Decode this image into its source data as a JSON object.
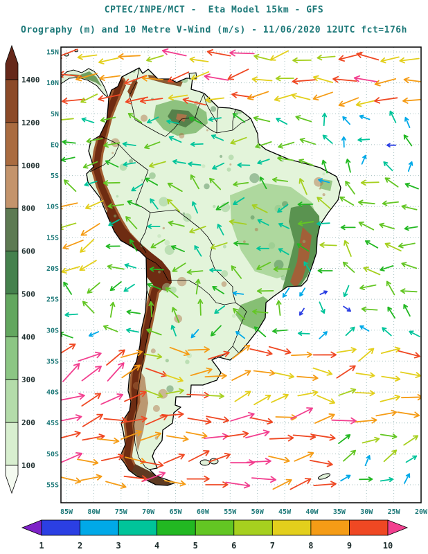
{
  "header": {
    "title_line1": "CPTEC/INPE/MCT -  Eta Model 15km - GFS",
    "title_line2": "Orography (m) and 10 Metre V-Wind (m/s) - 11/06/2020 12UTC fct=176h"
  },
  "chart_data": {
    "type": "heatmap",
    "subtype": "geographic weather chart: filled orography shading with colored 10m wind vector field over South America",
    "title": "CPTEC/INPE/MCT -  Eta Model 15km - GFS",
    "subtitle": "Orography (m) and 10 Metre V-Wind (m/s) - 11/06/2020 12UTC fct=176h",
    "model": "Eta Model 15km",
    "boundary_condition": "GFS",
    "valid_datetime": "11/06/2020 12UTC",
    "forecast": "fct=176h",
    "annotation_color": "#1c7878",
    "grid": "dotted",
    "x_axis": {
      "label": "longitude",
      "ticks": [
        "85W",
        "80W",
        "75W",
        "70W",
        "65W",
        "60W",
        "55W",
        "50W",
        "45W",
        "40W",
        "35W",
        "30W",
        "25W",
        "20W"
      ]
    },
    "y_axis": {
      "label": "latitude",
      "ticks": [
        "15N",
        "10N",
        "5N",
        "EQ",
        "5S",
        "10S",
        "15S",
        "20S",
        "25S",
        "30S",
        "35S",
        "40S",
        "45S",
        "50S",
        "55S"
      ]
    },
    "orography_scale": {
      "units": "m",
      "tick_labels": [
        1400,
        1200,
        1000,
        800,
        600,
        500,
        400,
        300,
        200,
        100
      ],
      "colors_top_to_bottom": [
        "#66281a",
        "#8c4a28",
        "#aa6c40",
        "#c4946c",
        "#5d7a52",
        "#45814d",
        "#63a75f",
        "#8cc684",
        "#b4dcaa",
        "#d8efcf",
        "#f4faf0"
      ]
    },
    "wind_scale": {
      "units": "m/s",
      "tick_labels": [
        1,
        2,
        3,
        4,
        5,
        6,
        7,
        8,
        9,
        10
      ],
      "colors_left_to_right": [
        "#7e22c8",
        "#2b3fe3",
        "#00a9e8",
        "#00c49a",
        "#22b822",
        "#63c623",
        "#a6d01f",
        "#e3cf1c",
        "#f59c16",
        "#ef4823",
        "#f23f8f"
      ]
    },
    "wind_field_zones": [
      {
        "lat": [
          -23,
          -8
        ],
        "lon": [
          78,
          86
        ],
        "dir": 205,
        "spread": 40,
        "spd": [
          6.5,
          9
        ]
      },
      {
        "lat": [
          5,
          16
        ],
        "lon": [
          20,
          86
        ],
        "dir": 185,
        "spread": 45,
        "spd": [
          6.4,
          10.3
        ]
      },
      {
        "lat": [
          -6,
          5
        ],
        "lon": [
          20,
          40
        ],
        "dir": 120,
        "spread": 140,
        "spd": [
          1.2,
          4.6
        ]
      },
      {
        "lat": [
          -6,
          5
        ],
        "lon": [
          40,
          86
        ],
        "dir": 172,
        "spread": 70,
        "spd": [
          3.4,
          6.2
        ]
      },
      {
        "lat": [
          -21,
          -6
        ],
        "lon": [
          20,
          33
        ],
        "dir": 175,
        "spread": 60,
        "spd": [
          4,
          7
        ]
      },
      {
        "lat": [
          -21,
          -6
        ],
        "lon": [
          33,
          86
        ],
        "dir": 165,
        "spread": 110,
        "spd": [
          3,
          6.4
        ]
      },
      {
        "lat": [
          -33,
          -21
        ],
        "lon": [
          30,
          45
        ],
        "dir": 180,
        "spread": 360,
        "spd": [
          1,
          4.2
        ]
      },
      {
        "lat": [
          -33,
          -21
        ],
        "lon": [
          20,
          30
        ],
        "dir": 150,
        "spread": 100,
        "spd": [
          3,
          6
        ]
      },
      {
        "lat": [
          -33,
          -21
        ],
        "lon": [
          45,
          86
        ],
        "dir": 160,
        "spread": 160,
        "spd": [
          2.5,
          6
        ]
      },
      {
        "lat": [
          -42,
          -33
        ],
        "lon": [
          72,
          86
        ],
        "dir": 30,
        "spread": 40,
        "spd": [
          8.6,
          10.4
        ]
      },
      {
        "lat": [
          -42,
          -33
        ],
        "lon": [
          20,
          72
        ],
        "dir": 10,
        "spread": 70,
        "spd": [
          6.5,
          9.5
        ]
      },
      {
        "lat": [
          -56,
          -45
        ],
        "lon": [
          20,
          37
        ],
        "dir": 30,
        "spread": 90,
        "spd": [
          2.5,
          6.5
        ]
      },
      {
        "lat": [
          -57,
          -42
        ],
        "lon": [
          20,
          86
        ],
        "dir": 8,
        "spread": 50,
        "spd": [
          8,
          10.4
        ]
      }
    ]
  }
}
